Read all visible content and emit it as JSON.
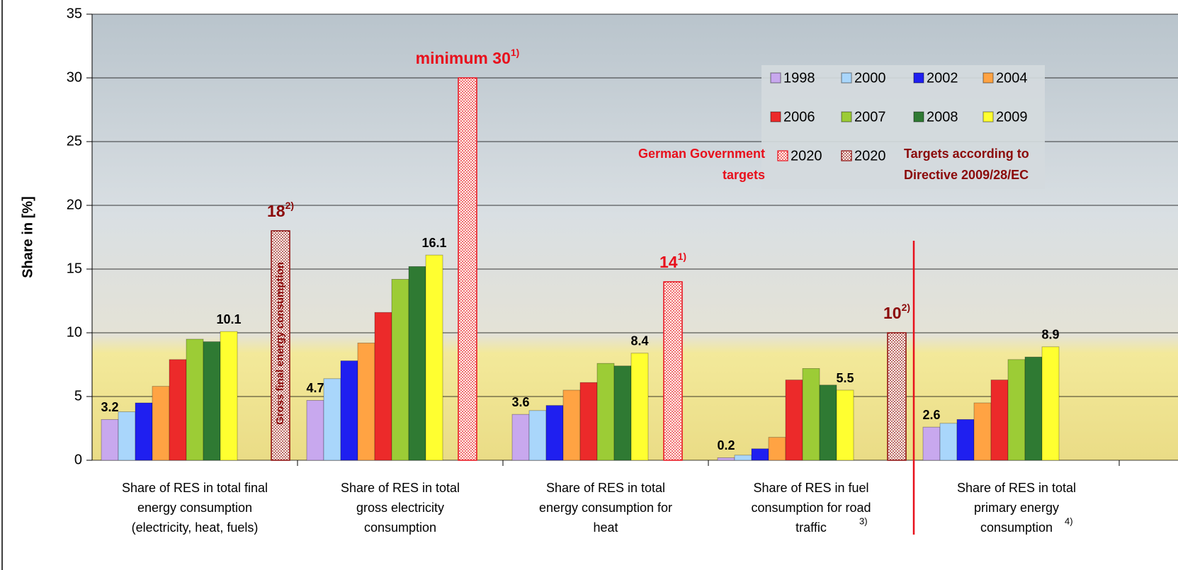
{
  "chart_data": {
    "type": "bar",
    "ylabel": "Share in [%]",
    "categories": [
      [
        "Share of RES in total final",
        "energy consumption",
        "(electricity, heat, fuels)"
      ],
      [
        "Share of RES in total",
        "gross electricity",
        "consumption"
      ],
      [
        "Share of RES in total",
        "energy consumption for",
        "heat"
      ],
      [
        "Share of RES in fuel",
        "consumption for road",
        "traffic"
      ],
      [
        "Share of RES in total",
        "primary energy",
        "consumption"
      ]
    ],
    "category_notes": [
      null,
      null,
      null,
      "3)",
      "4)"
    ],
    "ylim": [
      0,
      35
    ],
    "yticks": [
      0,
      5,
      10,
      15,
      20,
      25,
      30,
      35
    ],
    "grid": true,
    "series": [
      {
        "name": "1998",
        "color": "#c8a8ee",
        "values": [
          3.2,
          4.7,
          3.6,
          0.2,
          2.6
        ],
        "data_labels": true
      },
      {
        "name": "2000",
        "color": "#a9d6fb",
        "values": [
          3.8,
          6.4,
          3.9,
          0.4,
          2.9
        ]
      },
      {
        "name": "2002",
        "color": "#1f1ff0",
        "values": [
          4.5,
          7.8,
          4.3,
          0.9,
          3.2
        ]
      },
      {
        "name": "2004",
        "color": "#ffa343",
        "values": [
          5.8,
          9.2,
          5.5,
          1.8,
          4.5
        ]
      },
      {
        "name": "2006",
        "color": "#ec2a2a",
        "values": [
          7.9,
          11.6,
          6.1,
          6.3,
          6.3
        ]
      },
      {
        "name": "2007",
        "color": "#9ccc36",
        "values": [
          9.5,
          14.2,
          7.6,
          7.2,
          7.9
        ]
      },
      {
        "name": "2008",
        "color": "#2f7a33",
        "values": [
          9.3,
          15.2,
          7.4,
          5.9,
          8.1
        ]
      },
      {
        "name": "2009",
        "color": "#ffff30",
        "values": [
          10.1,
          16.1,
          8.4,
          5.5,
          8.9
        ],
        "data_labels": true
      },
      {
        "name": "2020",
        "color": "#e8101c",
        "pattern": true,
        "values": [
          null,
          30,
          14,
          null,
          null
        ],
        "value_labels": [
          null,
          "minimum 30",
          "14",
          null,
          null
        ],
        "value_label_notes": [
          null,
          "1)",
          "1)",
          null,
          null
        ],
        "legend_note": [
          "German Government",
          "targets"
        ]
      },
      {
        "name": "2020",
        "color": "#8b0a0a",
        "pattern": true,
        "values": [
          18,
          null,
          null,
          10,
          null
        ],
        "value_labels": [
          "18",
          null,
          null,
          "10",
          null
        ],
        "value_label_notes": [
          "2)",
          null,
          null,
          "2)",
          null
        ],
        "legend_note": [
          "Targets according to",
          "Directive 2009/28/EC"
        ]
      }
    ],
    "annotations": [
      {
        "text": "Gross final energy consumption",
        "series": 9,
        "category": 0
      }
    ]
  }
}
